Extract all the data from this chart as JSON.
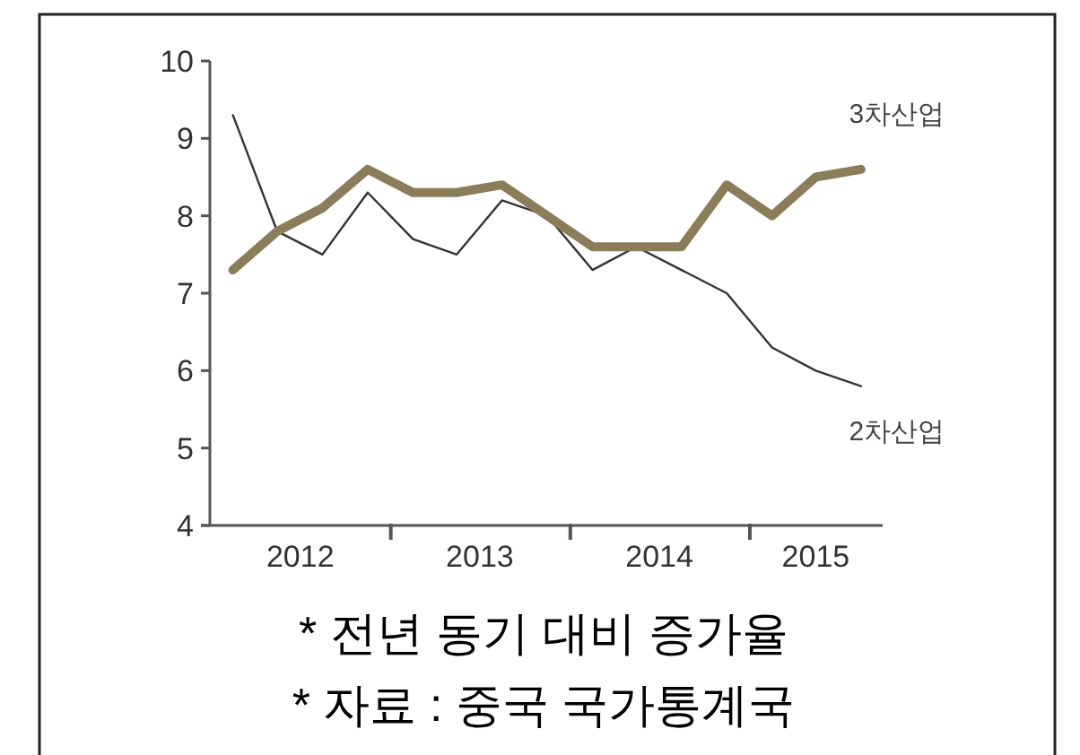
{
  "chart_data": {
    "type": "line",
    "x": [
      "2012-02-15",
      "2012-05-15",
      "2012-08-15",
      "2012-11-15",
      "2013-02-15",
      "2013-05-15",
      "2013-08-15",
      "2013-11-15",
      "2014-02-15",
      "2014-05-15",
      "2014-08-15",
      "2014-11-15",
      "2015-02-15",
      "2015-05-15",
      "2015-08-15"
    ],
    "series": [
      {
        "name": "2차산업",
        "color": "#333333",
        "values": [
          9.3,
          7.8,
          7.5,
          8.3,
          7.7,
          7.5,
          8.2,
          8.0,
          7.3,
          7.6,
          7.3,
          7.0,
          6.3,
          6.0,
          5.8
        ]
      },
      {
        "name": "3차산업",
        "color": "#8b7d5a",
        "values": [
          7.3,
          7.8,
          8.1,
          8.6,
          8.3,
          8.3,
          8.4,
          8.0,
          7.6,
          7.6,
          7.6,
          8.4,
          8.0,
          8.5,
          8.6
        ]
      }
    ],
    "xlim": [
      "2011-12-12",
      "2015-09-28"
    ],
    "xticks": [
      {
        "value": "2012-07-01",
        "label": "2012"
      },
      {
        "value": "2013-01-01",
        "label": null
      },
      {
        "value": "2013-07-01",
        "label": "2013"
      },
      {
        "value": "2014-01-01",
        "label": null
      },
      {
        "value": "2014-07-01",
        "label": "2014"
      },
      {
        "value": "2015-01-01",
        "label": null
      },
      {
        "value": "2015-05-15",
        "label": "2015"
      }
    ],
    "ylim": [
      4,
      10
    ],
    "yticks": [
      4,
      5,
      6,
      7,
      8,
      9,
      10
    ],
    "annotations": [
      "* 전년 동기 대비 증가율",
      "* 자료 : 중국 국가통계국"
    ]
  }
}
